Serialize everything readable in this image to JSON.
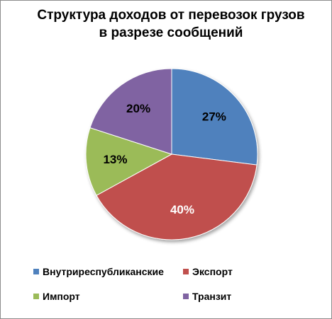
{
  "chart_data": {
    "type": "pie",
    "title_lines": [
      "Структура доходов от перевозок грузов",
      "в разрезе сообщений"
    ],
    "categories": [
      "Внутриреспубликанские",
      "Экспорт",
      "Импорт",
      "Транзит"
    ],
    "values": [
      27,
      40,
      13,
      20
    ],
    "data_labels": [
      "27%",
      "40%",
      "13%",
      "20%"
    ],
    "colors": [
      "#4F81BD",
      "#C0504D",
      "#9BBB59",
      "#8064A2"
    ],
    "legend_position": "bottom",
    "start_angle": "top, clockwise"
  }
}
